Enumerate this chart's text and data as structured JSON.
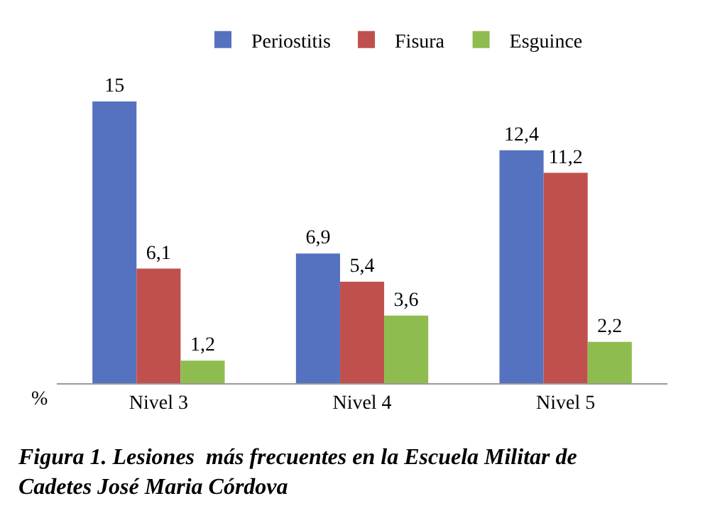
{
  "chart_data": {
    "type": "bar",
    "categories": [
      "Nivel 3",
      "Nivel 4",
      "Nivel 5"
    ],
    "ylabel": "%",
    "legend": "top",
    "tick_labels": "x",
    "series": [
      {
        "name": "Periostitis",
        "color": "#5572c0",
        "values": [
          15,
          6.9,
          12.4
        ],
        "value_labels": [
          "15",
          "6,9",
          "12,4"
        ]
      },
      {
        "name": "Fisura",
        "color": "#c0504d",
        "values": [
          6.1,
          5.4,
          11.2
        ],
        "value_labels": [
          "6,1",
          "5,4",
          "11,2"
        ]
      },
      {
        "name": "Esguince",
        "color": "#8fbc4f",
        "values": [
          1.2,
          3.6,
          2.2
        ],
        "value_labels": [
          "1,2",
          "3,6",
          "2,2"
        ]
      }
    ],
    "annotations": [
      "Figura 1. Lesiones  más frecuentes en la Escuela Militar de Cadetes José Maria Córdova"
    ]
  }
}
